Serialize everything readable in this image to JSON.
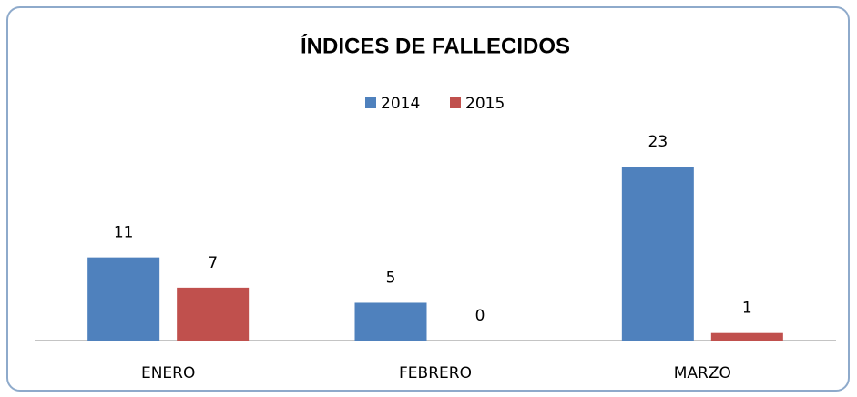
{
  "chart_data": {
    "type": "bar",
    "title": "ÍNDICES DE FALLECIDOS",
    "categories": [
      "ENERO",
      "FEBRERO",
      "MARZO"
    ],
    "series": [
      {
        "name": "2014",
        "color": "#4f81bd",
        "values": [
          11,
          5,
          23
        ]
      },
      {
        "name": "2015",
        "color": "#c0504d",
        "values": [
          7,
          0,
          1
        ]
      }
    ],
    "legend": "top"
  }
}
